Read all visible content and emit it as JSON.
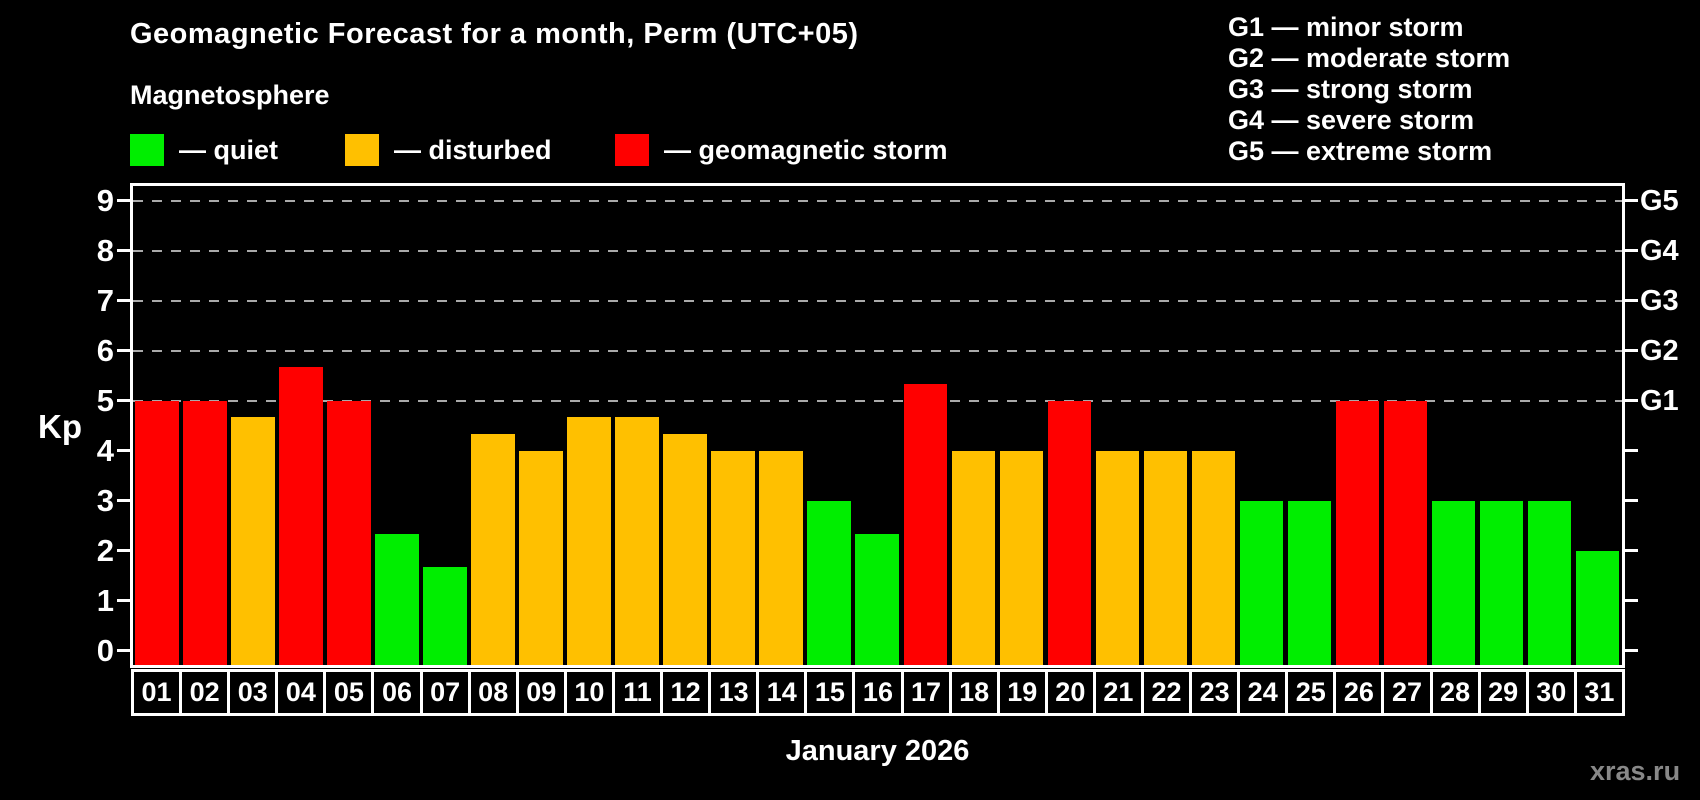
{
  "title": "Geomagnetic Forecast for a month, Perm (UTC+05)",
  "subtitle": "Magnetosphere",
  "legend": {
    "items": [
      {
        "label": "— quiet",
        "status": "quiet"
      },
      {
        "label": "— disturbed",
        "status": "disturbed"
      },
      {
        "label": "— geomagnetic storm",
        "status": "storm"
      }
    ]
  },
  "g_legend": {
    "lines": [
      "G1 — minor storm",
      "G2 — moderate storm",
      "G3 — strong storm",
      "G4 — severe storm",
      "G5 — extreme storm"
    ]
  },
  "colors": {
    "quiet": "#00EE00",
    "disturbed": "#FFC000",
    "storm": "#FF0000",
    "grid": "#AAAAAA",
    "axis": "#FFFFFF",
    "watermark": "#888888"
  },
  "watermark": "xras.ru",
  "chart_data": {
    "type": "bar",
    "title": "Geomagnetic Forecast for a month, Perm (UTC+05)",
    "xlabel": "January 2026",
    "ylabel": "Kp",
    "ylim": [
      0,
      9
    ],
    "yticks": [
      "0",
      "1",
      "2",
      "3",
      "4",
      "5",
      "6",
      "7",
      "8",
      "9"
    ],
    "grid": "horizontal dashed lines at Kp 5,6,7,8,9 only",
    "legend_position": "top-left",
    "right_axis_labels": [
      {
        "kp": 5,
        "label": "G1"
      },
      {
        "kp": 6,
        "label": "G2"
      },
      {
        "kp": 7,
        "label": "G3"
      },
      {
        "kp": 8,
        "label": "G4"
      },
      {
        "kp": 9,
        "label": "G5"
      }
    ],
    "categories": [
      "01",
      "02",
      "03",
      "04",
      "05",
      "06",
      "07",
      "08",
      "09",
      "10",
      "11",
      "12",
      "13",
      "14",
      "15",
      "16",
      "17",
      "18",
      "19",
      "20",
      "21",
      "22",
      "23",
      "24",
      "25",
      "26",
      "27",
      "28",
      "29",
      "30",
      "31"
    ],
    "values": [
      5,
      5,
      4.67,
      5.67,
      5,
      2.33,
      1.67,
      4.33,
      4,
      4.67,
      4.67,
      4.33,
      4,
      4,
      3,
      2.33,
      5.33,
      4,
      4,
      5,
      4,
      4,
      4,
      3,
      3,
      5,
      5,
      3,
      3,
      3,
      2
    ],
    "statuses": [
      "storm",
      "storm",
      "disturbed",
      "storm",
      "storm",
      "quiet",
      "quiet",
      "disturbed",
      "disturbed",
      "disturbed",
      "disturbed",
      "disturbed",
      "disturbed",
      "disturbed",
      "quiet",
      "quiet",
      "storm",
      "disturbed",
      "disturbed",
      "storm",
      "disturbed",
      "disturbed",
      "disturbed",
      "quiet",
      "quiet",
      "storm",
      "storm",
      "quiet",
      "quiet",
      "quiet",
      "quiet"
    ]
  }
}
